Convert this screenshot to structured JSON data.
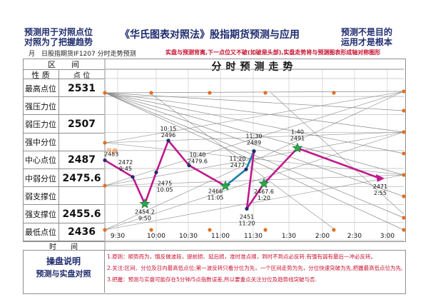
{
  "header": {
    "left_line1": "预测用于对照点位",
    "left_line2": "对照为了把握趋势",
    "title": "《华氏图表对照法》股指期货预测与应用",
    "right_line1": "预测不是目的",
    "right_line2": "运用才是根本",
    "date_label": "月　日股指期货IF1207 分时走势预测",
    "red_note": "实盘与预测背离,下一点位又不破(如破是头部),实盘走势将与预测图表形成轴对称图形"
  },
  "table": {
    "head_top": "区　　间",
    "col_nature": "性 质",
    "col_point": "点 位",
    "rows": [
      {
        "label": "最高点位",
        "value": "2531"
      },
      {
        "label": "强压力位",
        "value": ""
      },
      {
        "label": "弱压力位",
        "value": "2507"
      },
      {
        "label": "强中分位",
        "value": ""
      },
      {
        "label": "中心点位",
        "value": "2487"
      },
      {
        "label": "中弱分位",
        "value": "2475.6"
      },
      {
        "label": "弱支撑位",
        "value": ""
      },
      {
        "label": "强支撑位",
        "value": "2455.6"
      },
      {
        "label": "最低点位",
        "value": "2436"
      }
    ],
    "time_label": "时　　间"
  },
  "chart_data": {
    "type": "line",
    "title": "分时预测走势",
    "x_ticks": [
      "9:30",
      "10:00",
      "10:30",
      "11:00",
      "11:30",
      "1:30",
      "2:00",
      "2:30",
      "3:00"
    ],
    "ylim": [
      2436,
      2531
    ],
    "open_label": "开盘",
    "series": [
      {
        "name": "",
        "color": "#c0188c",
        "points": [
          {
            "time": "9:15",
            "value": 2483,
            "label": "2483"
          },
          {
            "time": "9:45",
            "value": 2472,
            "label": "2472|9:45"
          },
          {
            "time": "9:50",
            "value": 2454.2,
            "label": "2454.2|9:50"
          },
          {
            "time": "10:05",
            "value": 2475,
            "label": "2475|10:05"
          },
          {
            "time": "10:15",
            "value": 2496,
            "label": "10:15|2496"
          },
          {
            "time": "10:40",
            "value": 2479.6,
            "label": "10:40|2479.6"
          },
          {
            "time": "11:05",
            "value": 2466,
            "label": "2466|11:05"
          }
        ]
      },
      {
        "name": "",
        "color": "#1a7fa8",
        "points": [
          {
            "time": "11:05",
            "value": 2466,
            "label": ""
          },
          {
            "time": "11:20",
            "value": 2477,
            "label": "11:20|2477"
          },
          {
            "time": "11:30",
            "value": 2489,
            "label": "11:30|2489"
          }
        ]
      },
      {
        "name": "",
        "color": "#c0188c",
        "points": [
          {
            "time": "11:30",
            "value": 2489,
            "label": ""
          },
          {
            "time": "11:20",
            "value": 2451,
            "label": "2451|11:20"
          },
          {
            "time": "1:20",
            "value": 2467.6,
            "label": "2467.6|1:20"
          },
          {
            "time": "1:40",
            "value": 2491,
            "label": "1:40|2491"
          },
          {
            "time": "2:55",
            "value": 2471,
            "label": "2471|2:55"
          }
        ]
      }
    ]
  },
  "notes": {
    "left_title": "操盘说明",
    "left_sub": "预测与实盘对照",
    "line1": "1.原则：顺势而为，慎反做波段，提前损、延后损，准时准点顺，到时不到点必反转.有强有弱有最后一冲必反转。",
    "line2": "2.关注:区间、分位及日内最高低点位;第一波反转只看分位为先，一个区间走势为先，分位快速突破为先,把握最高低点位为先。",
    "line3": "3.把握：预测与实盘可能存在5分钟/5点指数误差,所以要重点关注分位及趋势线突破与否."
  }
}
